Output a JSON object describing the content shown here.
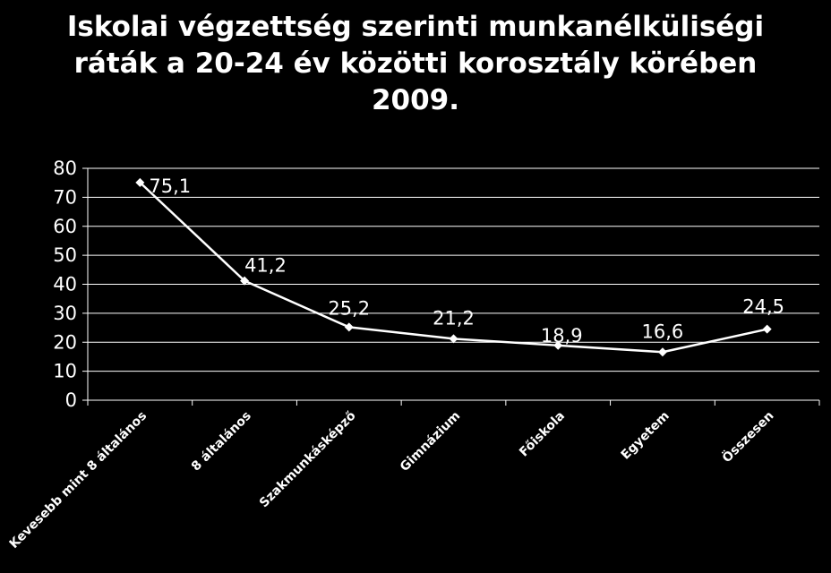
{
  "title": {
    "line1": "Iskolai végzettség szerinti munkanélküliségi",
    "line2": "ráták a 20-24 év közötti korosztály körében",
    "line3": "2009."
  },
  "colors": {
    "background": "#000000",
    "foreground": "#ffffff",
    "grid": "#ffffff"
  },
  "chart_data": {
    "type": "line",
    "title": "Iskolai végzettség szerinti munkanélküliségi ráták a 20-24 év közötti korosztály körében 2009.",
    "categories": [
      "Kevesebb mint 8 általános",
      "8 általános",
      "Szakmunkásképző",
      "Gimnázium",
      "Főiskola",
      "Egyetem",
      "Összesen"
    ],
    "series": [
      {
        "values": [
          75.1,
          41.2,
          25.2,
          21.2,
          18.9,
          16.6,
          24.5
        ]
      }
    ],
    "data_labels": [
      "75,1",
      "41,2",
      "25,2",
      "21,2",
      "18,9",
      "16,6",
      "24,5"
    ],
    "yticks": [
      "0",
      "10",
      "20",
      "30",
      "40",
      "50",
      "60",
      "70",
      "80"
    ],
    "ylim": [
      0,
      80
    ],
    "grid": true,
    "legend": "none",
    "xlabel": "",
    "ylabel": ""
  }
}
